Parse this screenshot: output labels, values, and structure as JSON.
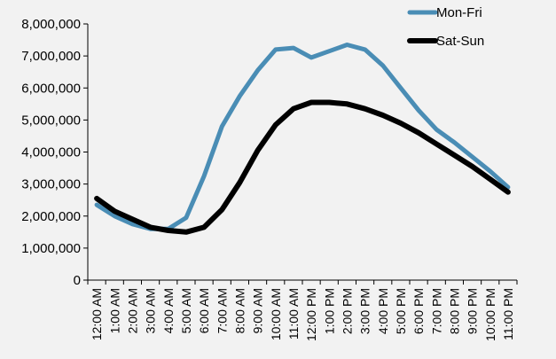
{
  "chart_data": {
    "type": "line",
    "title": "",
    "xlabel": "",
    "ylabel": "",
    "categories": [
      "12:00 AM",
      "1:00 AM",
      "2:00 AM",
      "3:00 AM",
      "4:00 AM",
      "5:00 AM",
      "6:00 AM",
      "7:00 AM",
      "8:00 AM",
      "9:00 AM",
      "10:00 AM",
      "11:00 AM",
      "12:00 PM",
      "1:00 PM",
      "2:00 PM",
      "3:00 PM",
      "4:00 PM",
      "5:00 PM",
      "6:00 PM",
      "7:00 PM",
      "8:00 PM",
      "9:00 PM",
      "10:00 PM",
      "11:00 PM"
    ],
    "y_ticks": [
      0,
      1000000,
      2000000,
      3000000,
      4000000,
      5000000,
      6000000,
      7000000,
      8000000
    ],
    "y_tick_labels": [
      "0",
      "1,000,000",
      "2,000,000",
      "3,000,000",
      "4,000,000",
      "5,000,000",
      "6,000,000",
      "7,000,000",
      "8,000,000"
    ],
    "ylim": [
      0,
      8000000
    ],
    "grid": false,
    "legend_position": "top-right",
    "series": [
      {
        "name": "Mon-Fri",
        "color": "#4a8db5",
        "values": [
          2350000,
          2000000,
          1750000,
          1600000,
          1600000,
          1950000,
          3250000,
          4800000,
          5750000,
          6550000,
          7200000,
          7250000,
          6950000,
          7150000,
          7350000,
          7200000,
          6700000,
          6000000,
          5300000,
          4700000,
          4300000,
          3850000,
          3400000,
          2900000
        ]
      },
      {
        "name": "Sat-Sun",
        "color": "#000000",
        "values": [
          2550000,
          2150000,
          1900000,
          1650000,
          1550000,
          1500000,
          1650000,
          2200000,
          3050000,
          4050000,
          4850000,
          5350000,
          5550000,
          5550000,
          5500000,
          5350000,
          5150000,
          4900000,
          4600000,
          4250000,
          3900000,
          3550000,
          3150000,
          2750000
        ]
      }
    ]
  }
}
